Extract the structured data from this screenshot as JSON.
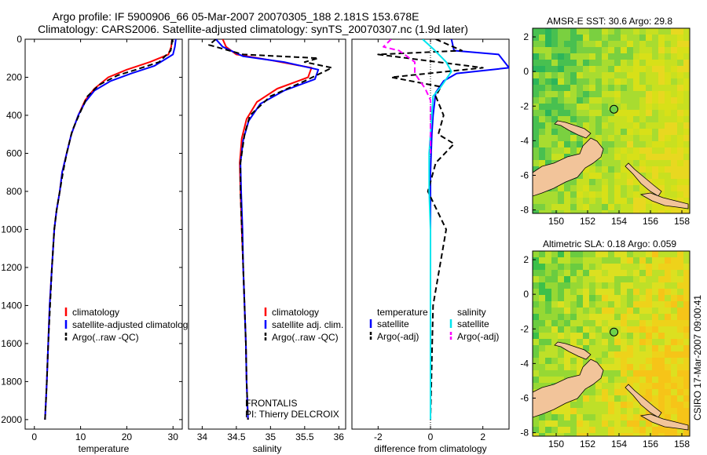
{
  "header": {
    "line1": "Argo profile: IF 5900906_66 05-Mar-2007 20070305_188 2.181S 153.678E",
    "line2": "Climatology: CARS2006. Satellite-adjusted climatology: synTS_20070307.nc (1.9d later)"
  },
  "side_credit": "CSIRO 17-Mar-2007 09:00:41",
  "colors": {
    "climatology": "#ff0000",
    "satellite": "#0000ff",
    "argo": "#000000",
    "sat_salinity": "#00e5ee",
    "argo_salinity": "#ff00ff"
  },
  "chart_data": [
    {
      "id": "temperature",
      "type": "line",
      "xlabel": "temperature",
      "ylabel": "",
      "xlim": [
        -2,
        32
      ],
      "ylim": [
        2050,
        0
      ],
      "xticks": [
        0,
        10,
        20,
        30
      ],
      "yticks": [
        0,
        200,
        400,
        600,
        800,
        1000,
        1200,
        1400,
        1600,
        1800,
        2000
      ],
      "legend": [
        {
          "label": "climatology",
          "color": "#ff0000",
          "dash": false
        },
        {
          "label": "satellite-adjusted climatology",
          "color": "#0000ff",
          "dash": false
        },
        {
          "label": "Argo(..raw -QC)",
          "color": "#000000",
          "dash": true
        }
      ],
      "series": [
        {
          "name": "climatology",
          "color": "#ff0000",
          "dash": false,
          "x": [
            29.8,
            29.6,
            29.0,
            25.0,
            20.0,
            16.0,
            13.0,
            11.0,
            9.5,
            8.0,
            7.0,
            6.0,
            5.5,
            4.8,
            4.3,
            3.8,
            3.3,
            3.0,
            2.7,
            2.5,
            2.3
          ],
          "y": [
            0,
            40,
            80,
            120,
            160,
            200,
            260,
            320,
            400,
            500,
            600,
            700,
            800,
            900,
            1000,
            1200,
            1400,
            1600,
            1800,
            1900,
            2000
          ]
        },
        {
          "name": "satellite-adjusted climatology",
          "color": "#0000ff",
          "dash": false,
          "x": [
            30.6,
            30.4,
            30.0,
            26.0,
            21.0,
            16.5,
            13.0,
            11.0,
            9.5,
            8.0,
            7.0,
            6.0,
            5.5,
            4.8,
            4.3,
            3.8,
            3.3,
            3.0,
            2.7,
            2.5,
            2.3
          ],
          "y": [
            0,
            40,
            80,
            140,
            180,
            220,
            270,
            330,
            400,
            500,
            600,
            700,
            800,
            900,
            1000,
            1200,
            1400,
            1600,
            1800,
            1900,
            2000
          ]
        },
        {
          "name": "Argo(..raw -QC)",
          "color": "#000000",
          "dash": true,
          "x": [
            29.8,
            29.7,
            29.5,
            27.0,
            22.0,
            18.0,
            14.0,
            11.5,
            10.0,
            8.2,
            7.0,
            6.2,
            5.5,
            4.8,
            4.3,
            3.8,
            3.4,
            3.0,
            2.7,
            2.5,
            2.3
          ],
          "y": [
            0,
            30,
            60,
            120,
            160,
            190,
            240,
            300,
            380,
            480,
            600,
            700,
            800,
            900,
            1000,
            1200,
            1400,
            1600,
            1800,
            1900,
            2000
          ]
        }
      ]
    },
    {
      "id": "salinity",
      "type": "line",
      "xlabel": "salinity",
      "ylabel": "",
      "xlim": [
        33.8,
        36.1
      ],
      "ylim": [
        2050,
        0
      ],
      "xticks": [
        34,
        34.5,
        35,
        35.5,
        36
      ],
      "yticks": [],
      "legend": [
        {
          "label": "climatology",
          "color": "#ff0000",
          "dash": false
        },
        {
          "label": "satellite adj. clim.",
          "color": "#0000ff",
          "dash": false
        },
        {
          "label": "Argo(..raw -QC)",
          "color": "#000000",
          "dash": true
        }
      ],
      "annotation": [
        "FRONTALIS",
        "PI: Thierry DELCROIX"
      ],
      "series": [
        {
          "name": "climatology",
          "color": "#ff0000",
          "dash": false,
          "x": [
            34.3,
            34.35,
            34.5,
            35.0,
            35.6,
            35.55,
            35.1,
            34.8,
            34.65,
            34.58,
            34.55,
            34.56,
            34.58,
            34.6,
            34.62,
            34.64,
            34.65,
            34.66,
            34.67
          ],
          "y": [
            0,
            40,
            80,
            110,
            150,
            200,
            260,
            330,
            420,
            520,
            650,
            800,
            1000,
            1200,
            1400,
            1600,
            1800,
            1900,
            2000
          ]
        },
        {
          "name": "satellite adj. clim.",
          "color": "#0000ff",
          "dash": false,
          "x": [
            34.2,
            34.3,
            34.6,
            35.2,
            35.7,
            35.65,
            35.2,
            34.85,
            34.68,
            34.6,
            34.56,
            34.57,
            34.59,
            34.6,
            34.62,
            34.64,
            34.65,
            34.66,
            34.67
          ],
          "y": [
            0,
            40,
            90,
            120,
            160,
            210,
            270,
            340,
            430,
            530,
            650,
            800,
            1000,
            1200,
            1400,
            1600,
            1800,
            1900,
            2000
          ]
        },
        {
          "name": "Argo(..raw -QC)",
          "color": "#000000",
          "dash": true,
          "x": [
            34.2,
            34.1,
            34.6,
            35.7,
            35.5,
            35.9,
            35.5,
            35.0,
            34.7,
            34.62,
            34.56,
            34.56,
            34.58,
            34.6,
            34.62,
            34.64,
            34.65,
            34.66,
            34.67
          ],
          "y": [
            0,
            30,
            80,
            100,
            120,
            150,
            220,
            300,
            400,
            500,
            650,
            800,
            1000,
            1200,
            1400,
            1600,
            1800,
            1900,
            2000
          ]
        }
      ]
    },
    {
      "id": "difference",
      "type": "line",
      "xlabel": "difference from climatology",
      "ylabel": "",
      "xlim": [
        -3,
        3
      ],
      "ylim": [
        2050,
        0
      ],
      "xticks": [
        -2,
        0,
        2
      ],
      "yticks": [],
      "legend_titles": [
        "temperature",
        "salinity"
      ],
      "legend": [
        {
          "label": "satellite",
          "color": "#0000ff",
          "dash": false
        },
        {
          "label": "Argo(-adj)",
          "color": "#000000",
          "dash": true
        },
        {
          "label": "satellite",
          "color": "#00e5ee",
          "dash": false
        },
        {
          "label": "Argo(-adj)",
          "color": "#ff00ff",
          "dash": true
        }
      ],
      "series": [
        {
          "name": "temperature satellite",
          "color": "#0000ff",
          "dash": false,
          "x": [
            0.8,
            0.9,
            2.6,
            3.0,
            1.0,
            0.5,
            0.2,
            0.1,
            0.05,
            0.0,
            0.0,
            0.0,
            0.0,
            0.0
          ],
          "y": [
            0,
            60,
            80,
            150,
            180,
            220,
            280,
            400,
            500,
            700,
            1000,
            1400,
            1800,
            2000
          ]
        },
        {
          "name": "temperature Argo(-adj)",
          "color": "#000000",
          "dash": true,
          "x": [
            0.2,
            1.2,
            -2.0,
            2.0,
            -1.5,
            0.4,
            0.2,
            0.5,
            0.3,
            0.9,
            0.2,
            -0.1,
            0.6,
            0.1,
            0.0
          ],
          "y": [
            0,
            60,
            80,
            150,
            200,
            250,
            300,
            400,
            500,
            550,
            650,
            800,
            1000,
            1400,
            2000
          ]
        },
        {
          "name": "salinity satellite",
          "color": "#00e5ee",
          "dash": false,
          "x": [
            -0.3,
            0.1,
            0.6,
            0.8,
            0.4,
            0.1,
            0.05,
            -0.05,
            -0.05,
            0.0,
            0.0,
            0.0,
            0.0
          ],
          "y": [
            0,
            50,
            120,
            170,
            250,
            300,
            400,
            600,
            800,
            1000,
            1400,
            1800,
            2000
          ]
        },
        {
          "name": "salinity Argo(-adj)",
          "color": "#ff00ff",
          "dash": true,
          "x": [
            -1.5,
            -1.8,
            -1.2,
            -0.6,
            -0.6,
            -0.2,
            0.0,
            0.0,
            0.0
          ],
          "y": [
            0,
            40,
            60,
            120,
            180,
            260,
            320,
            400,
            600
          ]
        }
      ]
    },
    {
      "id": "sst_map",
      "type": "heatmap",
      "title": "AMSR-E SST: 30.6 Argo: 29.8",
      "xlim": [
        148.5,
        158.5
      ],
      "ylim": [
        -8.2,
        2.5
      ],
      "xticks": [
        150,
        152,
        154,
        156,
        158
      ],
      "yticks": [
        -8,
        -6,
        -4,
        -2,
        0,
        2
      ],
      "argo_position": {
        "lon": 153.678,
        "lat": -2.181
      }
    },
    {
      "id": "sla_map",
      "type": "heatmap",
      "title": "Altimetric SLA: 0.18 Argo: 0.059",
      "xlim": [
        148.5,
        158.5
      ],
      "ylim": [
        -8.2,
        2.5
      ],
      "xticks": [
        150,
        152,
        154,
        156,
        158
      ],
      "yticks": [
        -8,
        -6,
        -4,
        -2,
        0,
        2
      ],
      "argo_position": {
        "lon": 153.678,
        "lat": -2.181
      }
    }
  ]
}
